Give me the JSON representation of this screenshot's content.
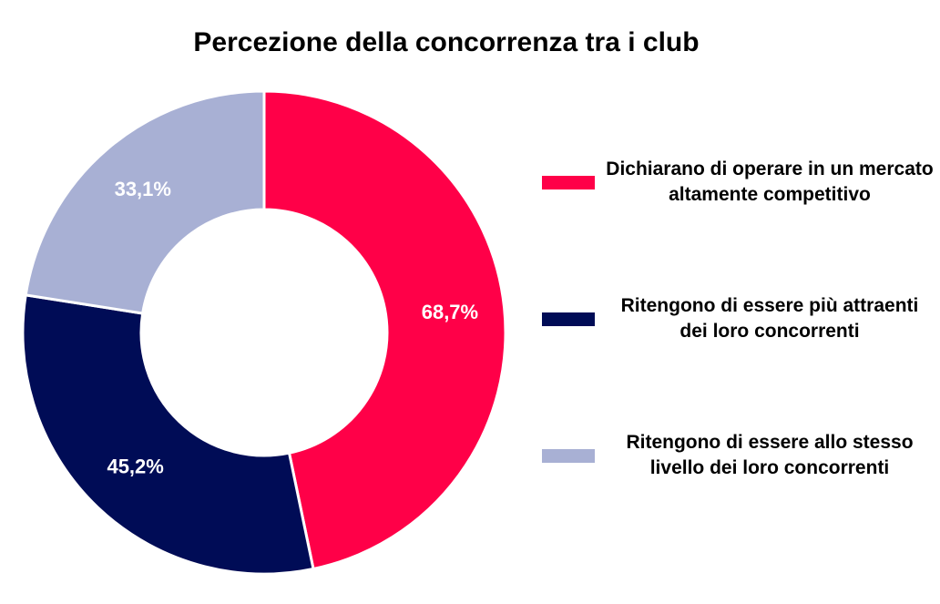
{
  "chart_data": {
    "type": "pie",
    "donut": true,
    "title": "Percezione della concorrenza tra i club",
    "categories": [
      "Dichiarano di operare in un mercato altamente competitivo",
      "Ritengono di essere più attraenti dei loro concorrenti",
      "Ritengono di essere allo stesso livello dei loro concorrenti"
    ],
    "values": [
      68.7,
      45.2,
      33.1
    ],
    "value_labels": [
      "68,7%",
      "45,2%",
      "33,1%"
    ],
    "colors": [
      "#ff0048",
      "#000c56",
      "#a8b0d4"
    ],
    "legend": "right"
  }
}
